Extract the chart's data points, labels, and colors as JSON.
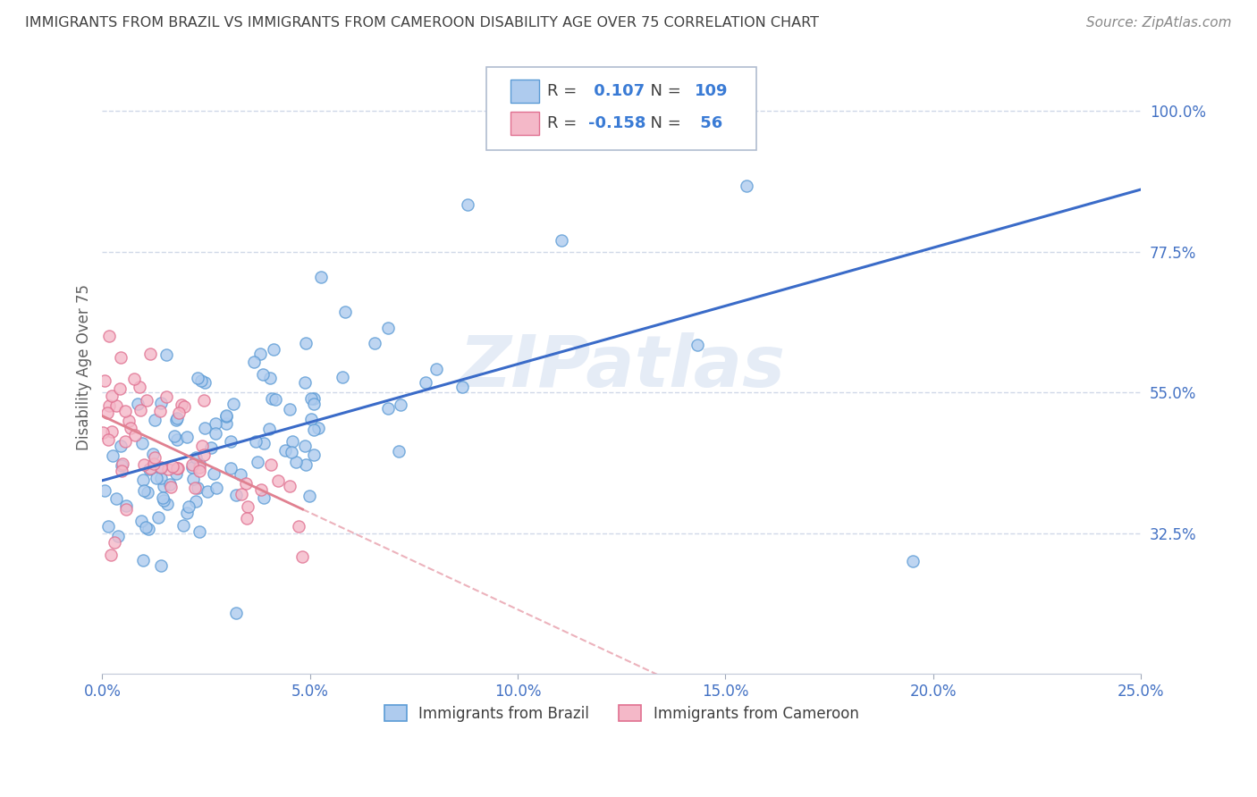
{
  "title": "IMMIGRANTS FROM BRAZIL VS IMMIGRANTS FROM CAMEROON DISABILITY AGE OVER 75 CORRELATION CHART",
  "source": "Source: ZipAtlas.com",
  "ylabel": "Disability Age Over 75",
  "xlim": [
    0.0,
    0.25
  ],
  "ylim": [
    0.1,
    1.08
  ],
  "xtick_labels": [
    "0.0%",
    "5.0%",
    "10.0%",
    "15.0%",
    "20.0%",
    "25.0%"
  ],
  "xtick_values": [
    0.0,
    0.05,
    0.1,
    0.15,
    0.2,
    0.25
  ],
  "ytick_labels": [
    "32.5%",
    "55.0%",
    "77.5%",
    "100.0%"
  ],
  "ytick_values": [
    0.325,
    0.55,
    0.775,
    1.0
  ],
  "brazil_R": 0.107,
  "brazil_N": 109,
  "cameroon_R": -0.158,
  "cameroon_N": 56,
  "brazil_color": "#aecbee",
  "brazil_edge": "#5b9bd5",
  "cameroon_color": "#f4b8c8",
  "cameroon_edge": "#e07090",
  "brazil_line_color": "#3a6bc8",
  "cameroon_line_color": "#e08090",
  "watermark": "ZIPatlas",
  "watermark_color": "#c8d8f0",
  "legend_label_brazil": "Immigrants from Brazil",
  "legend_label_cameroon": "Immigrants from Cameroon",
  "background_color": "#ffffff",
  "grid_color": "#d0d8e8",
  "title_color": "#404040",
  "source_color": "#888888",
  "axis_label_color": "#606060",
  "tick_color": "#4472c4",
  "brazil_seed": 10,
  "cameroon_seed": 20
}
